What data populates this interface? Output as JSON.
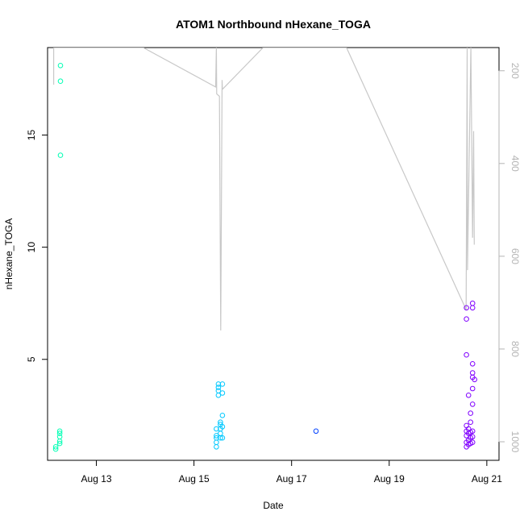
{
  "chart_data": {
    "type": "scatter",
    "title": "ATOM1 Northbound nHexane_TOGA",
    "xlabel": "Date",
    "ylabel": "nHexane_TOGA",
    "xlim": [
      "2016-08-12 00:00",
      "2016-08-21 06:00"
    ],
    "ylim": [
      0.5,
      18.9
    ],
    "x_ticks": [
      {
        "date": "2016-08-13",
        "label": "Aug 13"
      },
      {
        "date": "2016-08-15",
        "label": "Aug 15"
      },
      {
        "date": "2016-08-17",
        "label": "Aug 17"
      },
      {
        "date": "2016-08-19",
        "label": "Aug 19"
      },
      {
        "date": "2016-08-21",
        "label": "Aug 21"
      }
    ],
    "y_ticks": [
      5,
      10,
      15
    ],
    "y2_lim": [
      1040,
      150
    ],
    "y2_ticks": [
      200,
      400,
      600,
      800,
      1000
    ],
    "colors": {
      "axis": "#000000",
      "secondary_axis": "#b4b4b4",
      "altitude_line": "#c8c8c8"
    },
    "series": [
      {
        "color": "#00ffb4",
        "points": [
          [
            "2016-08-12 04:00",
            1.0
          ],
          [
            "2016-08-12 04:00",
            1.1
          ],
          [
            "2016-08-12 06:00",
            1.25
          ],
          [
            "2016-08-12 06:00",
            1.35
          ],
          [
            "2016-08-12 06:00",
            1.55
          ],
          [
            "2016-08-12 06:00",
            1.7
          ],
          [
            "2016-08-12 06:00",
            1.8
          ],
          [
            "2016-08-12 06:20",
            14.1
          ],
          [
            "2016-08-12 06:20",
            17.4
          ],
          [
            "2016-08-12 06:20",
            18.1
          ]
        ]
      },
      {
        "color": "#00c8ff",
        "points": [
          [
            "2016-08-15 11:00",
            1.1
          ],
          [
            "2016-08-15 11:00",
            1.3
          ],
          [
            "2016-08-15 11:00",
            1.5
          ],
          [
            "2016-08-15 11:00",
            1.6
          ],
          [
            "2016-08-15 11:00",
            1.9
          ],
          [
            "2016-08-15 12:00",
            3.4
          ],
          [
            "2016-08-15 12:00",
            3.6
          ],
          [
            "2016-08-15 12:00",
            3.75
          ],
          [
            "2016-08-15 12:00",
            3.9
          ],
          [
            "2016-08-15 13:00",
            1.5
          ],
          [
            "2016-08-15 13:00",
            1.7
          ],
          [
            "2016-08-15 13:00",
            1.9
          ],
          [
            "2016-08-15 13:00",
            2.1
          ],
          [
            "2016-08-15 13:00",
            2.2
          ],
          [
            "2016-08-15 14:00",
            1.5
          ],
          [
            "2016-08-15 14:00",
            2.0
          ],
          [
            "2016-08-15 14:00",
            2.5
          ],
          [
            "2016-08-15 14:00",
            3.5
          ],
          [
            "2016-08-15 14:00",
            3.9
          ]
        ]
      },
      {
        "color": "#0040ff",
        "points": [
          [
            "2016-08-17 12:00",
            1.8
          ]
        ]
      },
      {
        "color": "#8000ff",
        "points": [
          [
            "2016-08-20 14:00",
            1.1
          ],
          [
            "2016-08-20 14:00",
            1.3
          ],
          [
            "2016-08-20 14:00",
            1.6
          ],
          [
            "2016-08-20 14:00",
            1.8
          ],
          [
            "2016-08-20 14:00",
            2.05
          ],
          [
            "2016-08-20 14:00",
            5.2
          ],
          [
            "2016-08-20 14:00",
            6.8
          ],
          [
            "2016-08-20 14:00",
            7.3
          ],
          [
            "2016-08-20 15:00",
            1.2
          ],
          [
            "2016-08-20 15:00",
            1.4
          ],
          [
            "2016-08-20 15:00",
            1.7
          ],
          [
            "2016-08-20 15:00",
            1.9
          ],
          [
            "2016-08-20 15:00",
            3.4
          ],
          [
            "2016-08-20 16:00",
            1.25
          ],
          [
            "2016-08-20 16:00",
            1.5
          ],
          [
            "2016-08-20 16:00",
            1.75
          ],
          [
            "2016-08-20 16:00",
            2.2
          ],
          [
            "2016-08-20 16:00",
            2.6
          ],
          [
            "2016-08-20 17:00",
            1.3
          ],
          [
            "2016-08-20 17:00",
            1.55
          ],
          [
            "2016-08-20 17:00",
            1.8
          ],
          [
            "2016-08-20 17:00",
            3.0
          ],
          [
            "2016-08-20 17:00",
            3.7
          ],
          [
            "2016-08-20 17:00",
            4.2
          ],
          [
            "2016-08-20 17:00",
            4.4
          ],
          [
            "2016-08-20 17:00",
            4.8
          ],
          [
            "2016-08-20 17:00",
            7.3
          ],
          [
            "2016-08-20 17:00",
            7.5
          ],
          [
            "2016-08-20 18:00",
            4.1
          ]
        ]
      }
    ],
    "altitude_line": [
      [
        "2016-08-12 03:00",
        230
      ],
      [
        "2016-08-12 03:00",
        150
      ],
      [
        "2016-08-13 23:00",
        150
      ],
      [
        "2016-08-15 10:40",
        235
      ],
      [
        "2016-08-15 11:00",
        150
      ],
      [
        "2016-08-15 11:10",
        250
      ],
      [
        "2016-08-15 12:30",
        255
      ],
      [
        "2016-08-15 13:10",
        760
      ],
      [
        "2016-08-15 13:50",
        220
      ],
      [
        "2016-08-15 14:00",
        240
      ],
      [
        "2016-08-16 10:00",
        150
      ],
      [
        "2016-08-18 03:00",
        150
      ],
      [
        "2016-08-20 13:50",
        715
      ],
      [
        "2016-08-20 14:20",
        150
      ],
      [
        "2016-08-20 14:30",
        630
      ],
      [
        "2016-08-20 16:10",
        150
      ],
      [
        "2016-08-20 17:00",
        560
      ],
      [
        "2016-08-20 17:30",
        330
      ],
      [
        "2016-08-20 17:50",
        575
      ]
    ]
  }
}
